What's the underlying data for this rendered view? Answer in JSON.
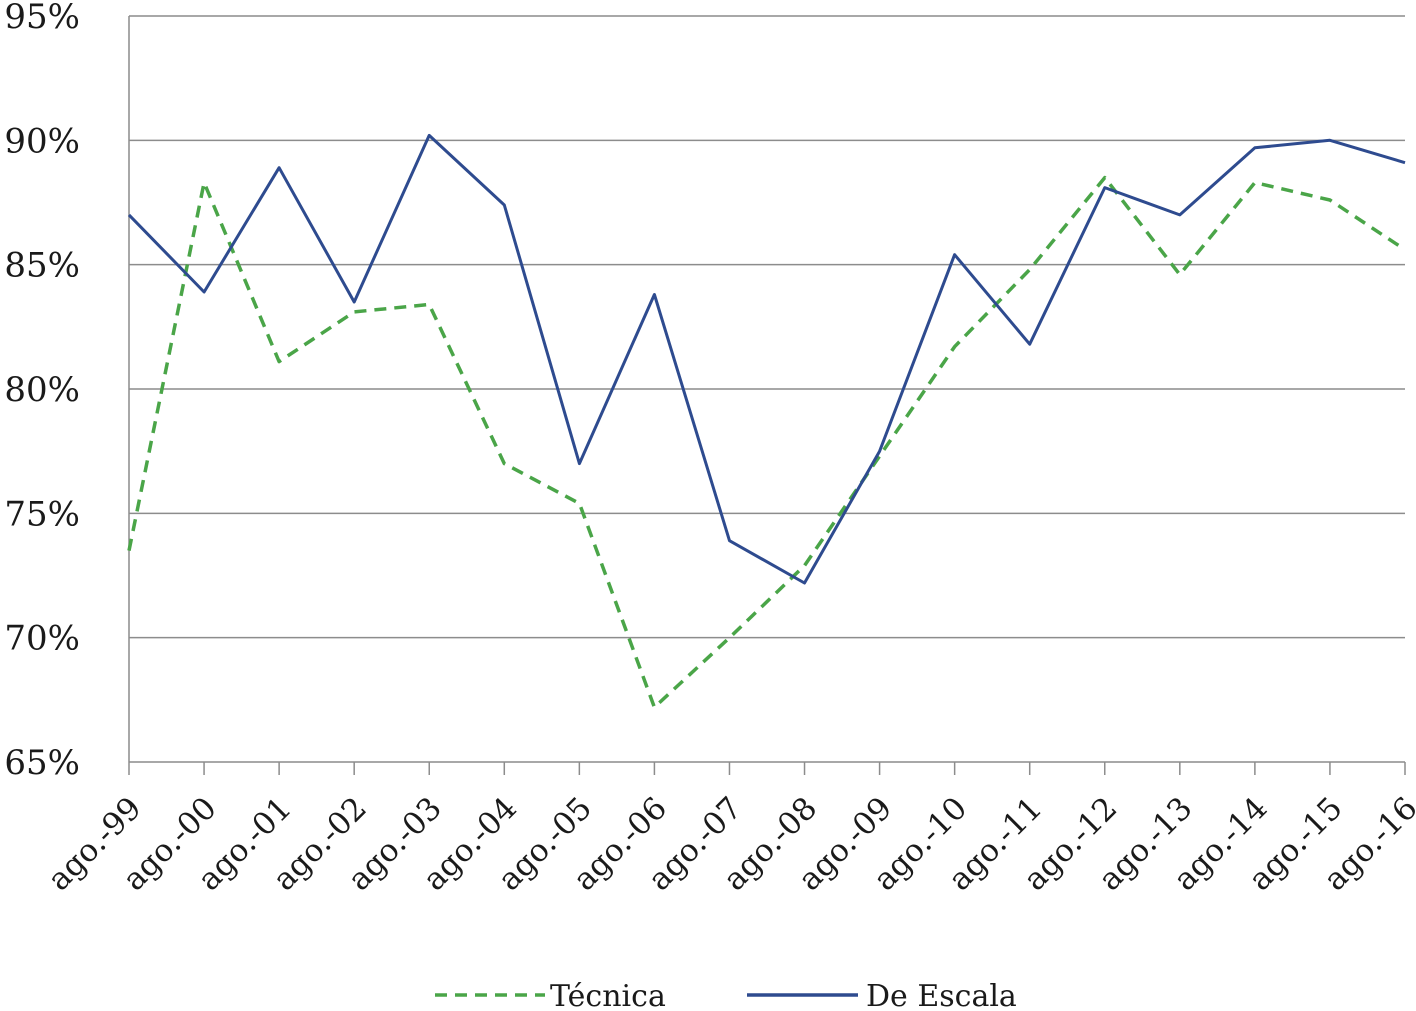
{
  "chart_data": {
    "type": "line",
    "title": "",
    "xlabel": "",
    "ylabel": "",
    "categories": [
      "ago.-99",
      "ago.-00",
      "ago.-01",
      "ago.-02",
      "ago.-03",
      "ago.-04",
      "ago.-05",
      "ago.-06",
      "ago.-07",
      "ago.-08",
      "ago.-09",
      "ago.-10",
      "ago.-11",
      "ago.-12",
      "ago.-13",
      "ago.-14",
      "ago.-15",
      "ago.-16"
    ],
    "ylim": [
      65,
      95
    ],
    "yticks": [
      65,
      70,
      75,
      80,
      85,
      90,
      95
    ],
    "ytick_labels": [
      "65%",
      "70%",
      "75%",
      "80%",
      "85%",
      "90%",
      "95%"
    ],
    "grid": true,
    "legend_position": "bottom",
    "series": [
      {
        "name": "Técnica",
        "style": "dashed",
        "color": "#4aa548",
        "values": [
          73.5,
          88.3,
          81.1,
          83.1,
          83.4,
          77.0,
          75.4,
          67.2,
          70.0,
          72.9,
          77.3,
          81.7,
          84.8,
          88.5,
          84.6,
          88.3,
          87.6,
          85.6
        ]
      },
      {
        "name": "De Escala",
        "style": "solid",
        "color": "#2e4b8f",
        "values": [
          87.0,
          83.9,
          88.9,
          83.5,
          90.2,
          87.4,
          77.0,
          83.8,
          73.9,
          72.2,
          77.5,
          85.4,
          81.8,
          88.1,
          87.0,
          89.7,
          90.0,
          89.1
        ]
      }
    ]
  }
}
